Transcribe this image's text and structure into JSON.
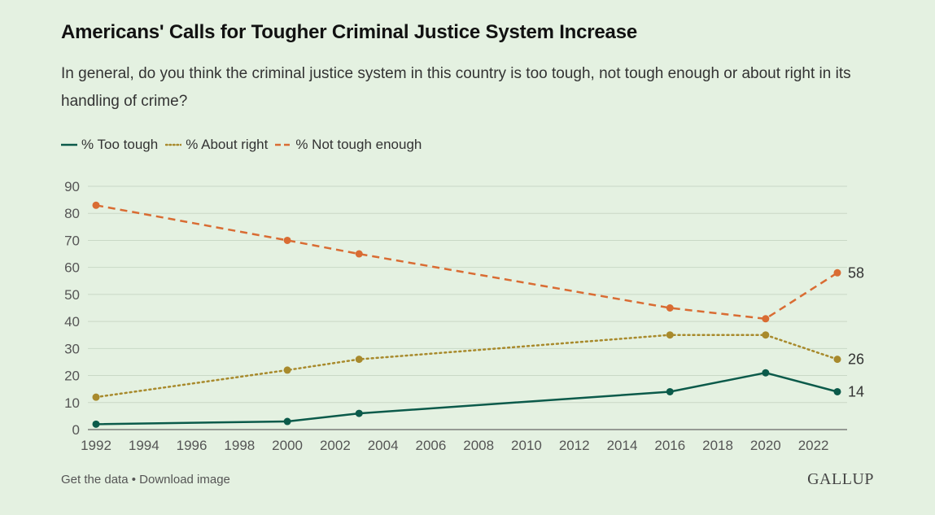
{
  "header": {
    "title": "Americans' Calls for Tougher Criminal Justice System Increase",
    "subtitle": "In general, do you think the criminal justice system in this country is too tough, not tough enough or about right in its handling of crime?"
  },
  "footer": {
    "get_data": "Get the data",
    "separator": "•",
    "download": "Download image",
    "brand": "GALLUP"
  },
  "colors": {
    "too_tough": "#0b5a4a",
    "about_right": "#a88a2c",
    "not_tough_enough": "#d96c33"
  },
  "chart_data": {
    "type": "line",
    "title": "Americans' Calls for Tougher Criminal Justice System Increase",
    "xlabel": "",
    "ylabel": "",
    "xlim": [
      1992,
      2023
    ],
    "ylim": [
      0,
      90
    ],
    "y_ticks": [
      0,
      10,
      20,
      30,
      40,
      50,
      60,
      70,
      80,
      90
    ],
    "x_ticks": [
      1992,
      1994,
      1996,
      1998,
      2000,
      2002,
      2004,
      2006,
      2008,
      2010,
      2012,
      2014,
      2016,
      2018,
      2020,
      2022
    ],
    "grid": true,
    "legend_position": "top-left",
    "series": [
      {
        "name": "% Too tough",
        "key": "too_tough",
        "style": "solid",
        "end_label": "14",
        "x": [
          1992,
          2000,
          2003,
          2016,
          2020,
          2023
        ],
        "values": [
          2,
          3,
          6,
          14,
          21,
          14
        ]
      },
      {
        "name": "% About right",
        "key": "about_right",
        "style": "dotted",
        "end_label": "26",
        "x": [
          1992,
          2000,
          2003,
          2016,
          2020,
          2023
        ],
        "values": [
          12,
          22,
          26,
          35,
          35,
          26
        ]
      },
      {
        "name": "% Not tough enough",
        "key": "not_tough_enough",
        "style": "dashed",
        "end_label": "58",
        "x": [
          1992,
          2000,
          2003,
          2016,
          2020,
          2023
        ],
        "values": [
          83,
          70,
          65,
          45,
          41,
          58
        ]
      }
    ]
  }
}
